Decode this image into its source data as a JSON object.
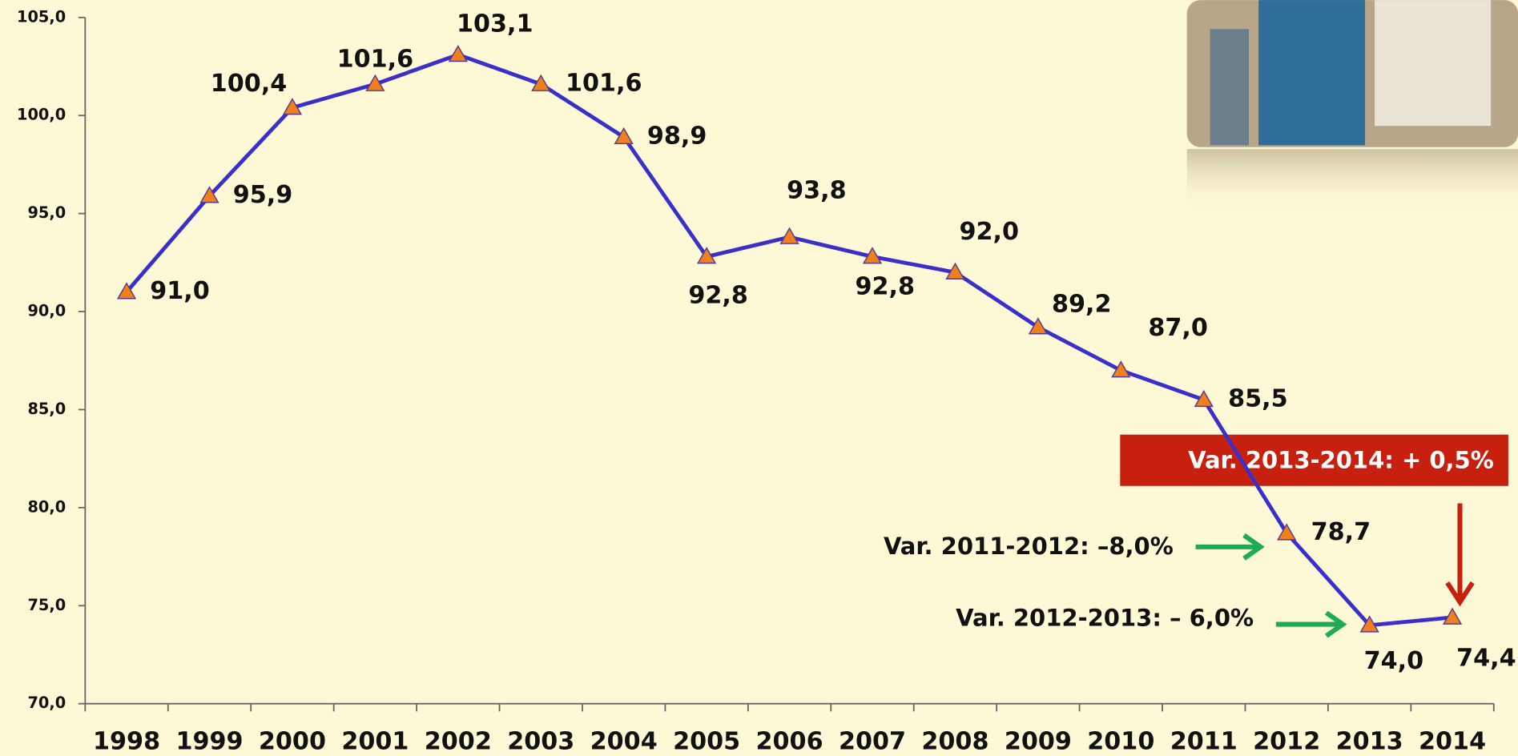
{
  "chart_data": {
    "type": "line",
    "categories": [
      "1998",
      "1999",
      "2000",
      "2001",
      "2002",
      "2003",
      "2004",
      "2005",
      "2006",
      "2007",
      "2008",
      "2009",
      "2010",
      "2011",
      "2012",
      "2013",
      "2014"
    ],
    "values": [
      91.0,
      95.9,
      100.4,
      101.6,
      103.1,
      101.6,
      98.9,
      92.8,
      93.8,
      92.8,
      92.0,
      89.2,
      87.0,
      85.5,
      78.7,
      74.0,
      74.4
    ],
    "value_labels": [
      "91,0",
      "95,9",
      "100,4",
      "101,6",
      "103,1",
      "101,6",
      "98,9",
      "92,8",
      "93,8",
      "92,8",
      "92,0",
      "89,2",
      "87,0",
      "85,5",
      "78,7",
      "74,0",
      "74,4"
    ],
    "color": "#3b2fc9",
    "marker_color": "#f0801c",
    "ylim": [
      70,
      105
    ],
    "yticks": [
      {
        "value": 70,
        "label": "70,0"
      },
      {
        "value": 75,
        "label": "75,0"
      },
      {
        "value": 80,
        "label": "80,0"
      },
      {
        "value": 85,
        "label": "85,0"
      },
      {
        "value": 90,
        "label": "90,0"
      },
      {
        "value": 95,
        "label": "95,0"
      },
      {
        "value": 100,
        "label": "100,0"
      },
      {
        "value": 105,
        "label": "105,0"
      }
    ],
    "grid": false,
    "annotations": [
      "Var. 2013-2014: + 0,5%",
      "Var. 2011-2012: –8,0%",
      "Var. 2012-2013: – 6,0%"
    ]
  }
}
